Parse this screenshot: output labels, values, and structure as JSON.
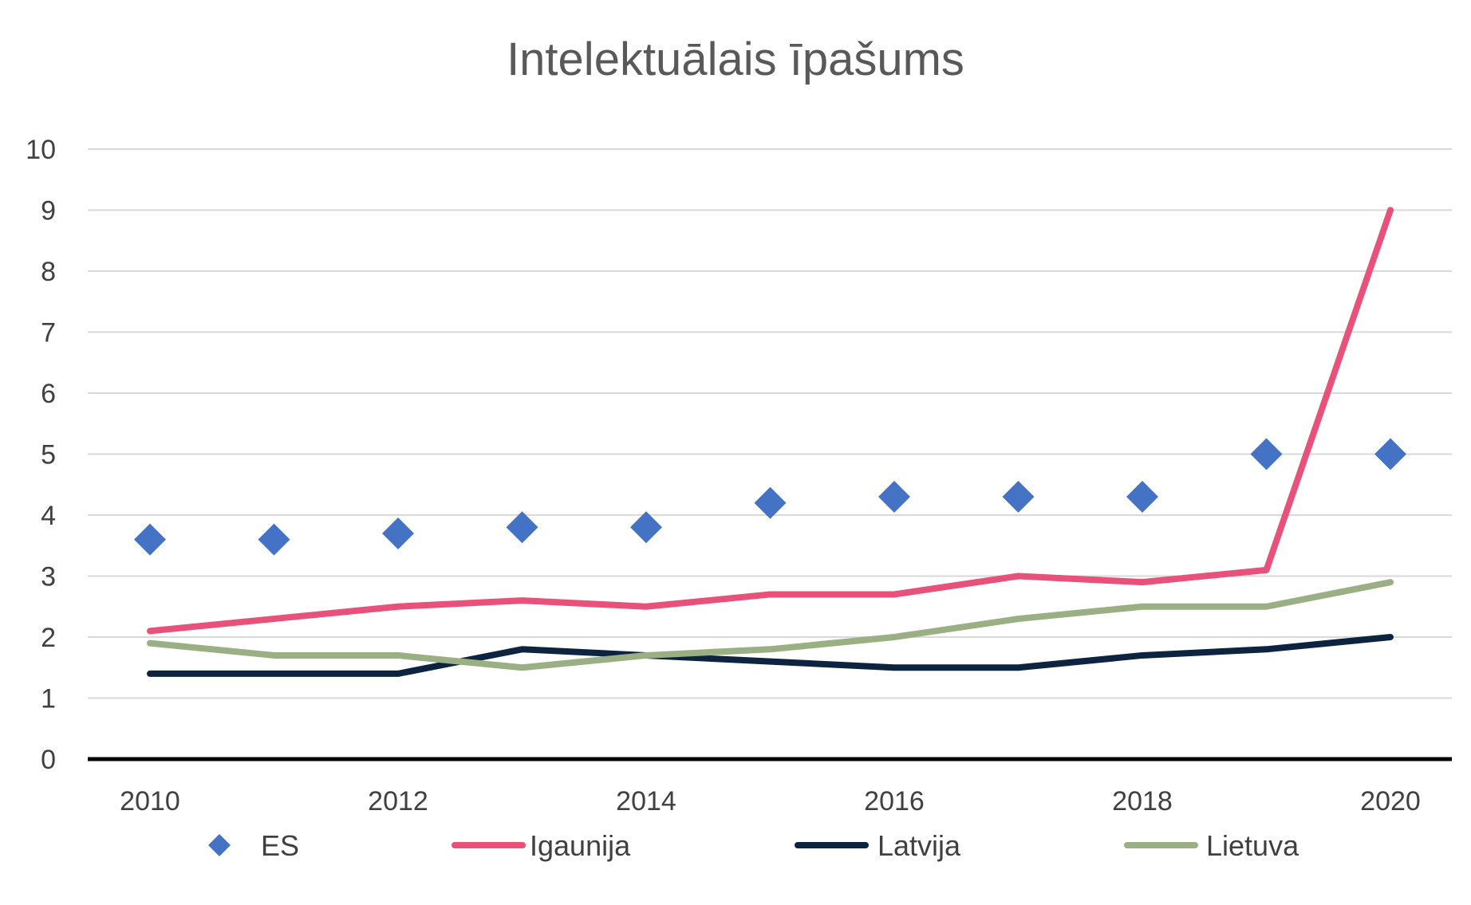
{
  "chart_data": {
    "type": "line",
    "title": "Intelektuālais īpašums",
    "xlabel": "",
    "ylabel": "",
    "x": [
      2010,
      2011,
      2012,
      2013,
      2014,
      2015,
      2016,
      2017,
      2018,
      2019,
      2020
    ],
    "x_tick_labels": [
      "2010",
      "2012",
      "2014",
      "2016",
      "2018",
      "2020"
    ],
    "x_tick_values": [
      2010,
      2012,
      2014,
      2016,
      2018,
      2020
    ],
    "y_tick_labels": [
      "0",
      "1",
      "2",
      "3",
      "4",
      "5",
      "6",
      "7",
      "8",
      "9",
      "10"
    ],
    "ylim": [
      0,
      10
    ],
    "grid": true,
    "legend_position": "bottom",
    "series": [
      {
        "name": "ES",
        "style": "marker",
        "color": "#4472C4",
        "values": [
          3.6,
          3.6,
          3.7,
          3.8,
          3.8,
          4.2,
          4.3,
          4.3,
          4.3,
          5.0,
          5.0
        ]
      },
      {
        "name": "Igaunija",
        "style": "line",
        "color": "#E8517A",
        "values": [
          2.1,
          2.3,
          2.5,
          2.6,
          2.5,
          2.7,
          2.7,
          3.0,
          2.9,
          3.1,
          9.0
        ]
      },
      {
        "name": "Latvija",
        "style": "line",
        "color": "#0D2440",
        "values": [
          1.4,
          1.4,
          1.4,
          1.8,
          1.7,
          1.6,
          1.5,
          1.5,
          1.7,
          1.8,
          2.0
        ]
      },
      {
        "name": "Lietuva",
        "style": "line",
        "color": "#9BAF84",
        "values": [
          1.9,
          1.7,
          1.7,
          1.5,
          1.7,
          1.8,
          2.0,
          2.3,
          2.5,
          2.5,
          2.9
        ]
      }
    ]
  }
}
